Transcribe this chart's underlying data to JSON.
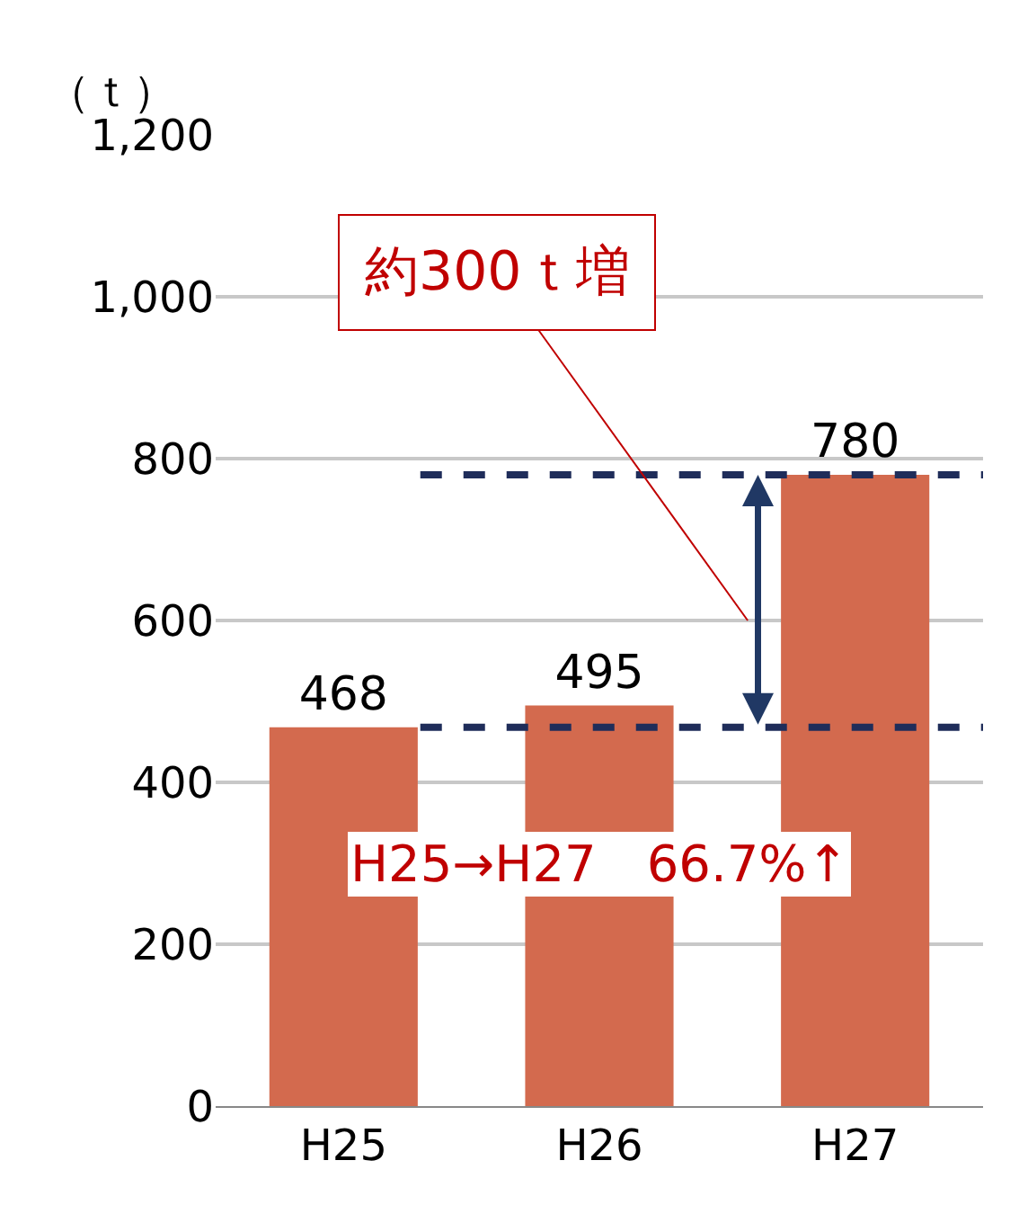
{
  "chart_data": {
    "type": "bar",
    "ylabel": "（ｔ）",
    "categories": [
      "H25",
      "H26",
      "H27"
    ],
    "values": [
      468,
      495,
      780
    ],
    "color": "#d36a4e",
    "data_labels": true,
    "ylim": [
      0,
      1200
    ],
    "yticks": [
      0,
      200,
      400,
      600,
      800,
      {
        "value": 1000,
        "label": "1,000"
      },
      {
        "value": 1200,
        "label": "1,200"
      }
    ],
    "grid": "y",
    "ref_lines": [
      {
        "axis": "y",
        "value": 468,
        "label": null,
        "color": "#1f2d5a",
        "line_style": "dashed"
      },
      {
        "axis": "y",
        "value": 780,
        "label": null,
        "color": "#1f2d5a",
        "line_style": "dashed"
      }
    ],
    "annotations": [
      "約300ｔ増",
      "H25→H27　66.7%↑"
    ]
  }
}
